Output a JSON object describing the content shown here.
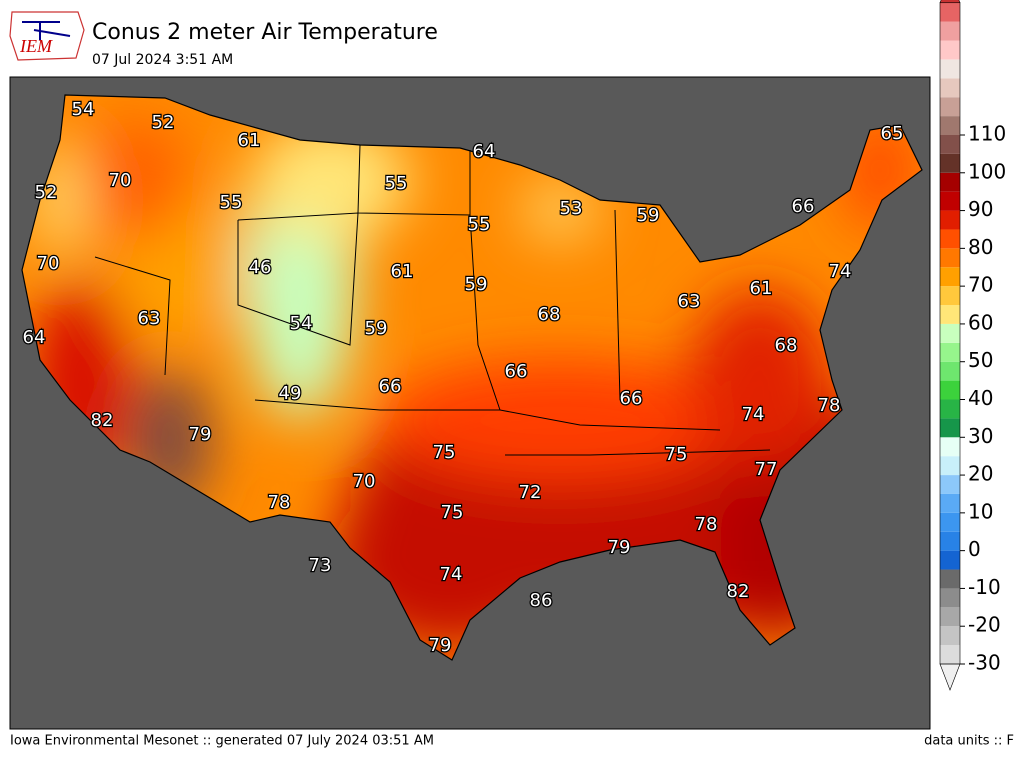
{
  "header": {
    "logo_text": "IEM",
    "title": "Conus 2 meter Air Temperature",
    "subtitle": "07 Jul 2024 3:51 AM"
  },
  "footer": {
    "left": "Iowa Environmental Mesonet :: generated 07 July 2024 03:51 AM",
    "right": "data units :: F"
  },
  "station_labels": [
    "54",
    "52",
    "61",
    "64",
    "65",
    "70",
    "52",
    "55",
    "55",
    "53",
    "59",
    "66",
    "55",
    "46",
    "70",
    "61",
    "59",
    "74",
    "61",
    "63",
    "63",
    "54",
    "59",
    "68",
    "68",
    "64",
    "66",
    "66",
    "49",
    "66",
    "78",
    "82",
    "79",
    "74",
    "75",
    "75",
    "77",
    "70",
    "72",
    "78",
    "75",
    "78",
    "79",
    "73",
    "74",
    "86",
    "82",
    "79"
  ],
  "colorbar": {
    "ticks": [
      -30,
      -20,
      -10,
      0,
      10,
      20,
      30,
      40,
      50,
      60,
      70,
      80,
      90,
      100,
      110
    ],
    "colors": [
      "#dcdcdc",
      "#c4c4c4",
      "#a8a8a8",
      "#8c8c8c",
      "#6a6a6a",
      "#1464d2",
      "#2882e6",
      "#3c96f0",
      "#5aaaf5",
      "#8cc8fa",
      "#c8f0fa",
      "#e6fff5",
      "#16964a",
      "#28b446",
      "#3cd23c",
      "#6ee66e",
      "#96f58c",
      "#c8ffbe",
      "#ffe678",
      "#ffc83c",
      "#ffa000",
      "#ff7800",
      "#ff5000",
      "#e11e00",
      "#c00000",
      "#a50000",
      "#643228",
      "#82504a",
      "#a0786e"
    ],
    "top_colors": [
      "#c8a096",
      "#e6c8be",
      "#f0e6e1",
      "#ffc8c8",
      "#f0a0a0",
      "#e66464"
    ],
    "arrow_top": "#c83232",
    "arrow_bottom": "#f0f0f0"
  }
}
